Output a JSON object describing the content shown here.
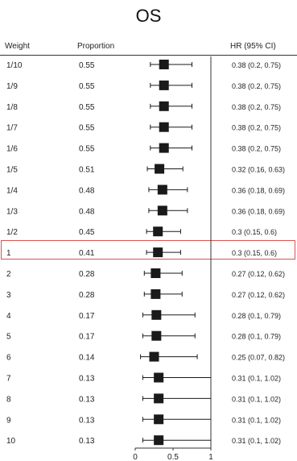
{
  "chart_data": {
    "type": "forest",
    "title": "OS",
    "columns": {
      "weight": "Weight",
      "proportion": "Proportion",
      "hr": "HR (95% CI)"
    },
    "rows": [
      {
        "weight": "1/10",
        "proportion": "0.55",
        "hr": 0.38,
        "lo": 0.2,
        "hi": 0.75,
        "label": "0.38 (0.2, 0.75)"
      },
      {
        "weight": "1/9",
        "proportion": "0.55",
        "hr": 0.38,
        "lo": 0.2,
        "hi": 0.75,
        "label": "0.38 (0.2, 0.75)"
      },
      {
        "weight": "1/8",
        "proportion": "0.55",
        "hr": 0.38,
        "lo": 0.2,
        "hi": 0.75,
        "label": "0.38 (0.2, 0.75)"
      },
      {
        "weight": "1/7",
        "proportion": "0.55",
        "hr": 0.38,
        "lo": 0.2,
        "hi": 0.75,
        "label": "0.38 (0.2, 0.75)"
      },
      {
        "weight": "1/6",
        "proportion": "0.55",
        "hr": 0.38,
        "lo": 0.2,
        "hi": 0.75,
        "label": "0.38 (0.2, 0.75)"
      },
      {
        "weight": "1/5",
        "proportion": "0.51",
        "hr": 0.32,
        "lo": 0.16,
        "hi": 0.63,
        "label": "0.32 (0.16, 0.63)"
      },
      {
        "weight": "1/4",
        "proportion": "0.48",
        "hr": 0.36,
        "lo": 0.18,
        "hi": 0.69,
        "label": "0.36 (0.18, 0.69)"
      },
      {
        "weight": "1/3",
        "proportion": "0.48",
        "hr": 0.36,
        "lo": 0.18,
        "hi": 0.69,
        "label": "0.36 (0.18, 0.69)"
      },
      {
        "weight": "1/2",
        "proportion": "0.45",
        "hr": 0.3,
        "lo": 0.15,
        "hi": 0.6,
        "label": "0.3 (0.15, 0.6)"
      },
      {
        "weight": "1",
        "proportion": "0.41",
        "hr": 0.3,
        "lo": 0.15,
        "hi": 0.6,
        "label": "0.3 (0.15, 0.6)",
        "highlight": true
      },
      {
        "weight": "2",
        "proportion": "0.28",
        "hr": 0.27,
        "lo": 0.12,
        "hi": 0.62,
        "label": "0.27 (0.12, 0.62)"
      },
      {
        "weight": "3",
        "proportion": "0.28",
        "hr": 0.27,
        "lo": 0.12,
        "hi": 0.62,
        "label": "0.27 (0.12, 0.62)"
      },
      {
        "weight": "4",
        "proportion": "0.17",
        "hr": 0.28,
        "lo": 0.1,
        "hi": 0.79,
        "label": "0.28 (0.1, 0.79)"
      },
      {
        "weight": "5",
        "proportion": "0.17",
        "hr": 0.28,
        "lo": 0.1,
        "hi": 0.79,
        "label": "0.28 (0.1, 0.79)"
      },
      {
        "weight": "6",
        "proportion": "0.14",
        "hr": 0.25,
        "lo": 0.07,
        "hi": 0.82,
        "label": "0.25 (0.07, 0.82)"
      },
      {
        "weight": "7",
        "proportion": "0.13",
        "hr": 0.31,
        "lo": 0.1,
        "hi": 1.02,
        "label": "0.31 (0.1, 1.02)"
      },
      {
        "weight": "8",
        "proportion": "0.13",
        "hr": 0.31,
        "lo": 0.1,
        "hi": 1.02,
        "label": "0.31 (0.1, 1.02)"
      },
      {
        "weight": "9",
        "proportion": "0.13",
        "hr": 0.31,
        "lo": 0.1,
        "hi": 1.02,
        "label": "0.31 (0.1, 1.02)"
      },
      {
        "weight": "10",
        "proportion": "0.13",
        "hr": 0.31,
        "lo": 0.1,
        "hi": 1.02,
        "label": "0.31 (0.1, 1.02)"
      }
    ],
    "x_ticks": [
      "0",
      "0.5",
      "1"
    ],
    "xlim": [
      0,
      1
    ],
    "reference_line": 1,
    "colors": {
      "marker": "#1a1a1a",
      "highlight_border": "#d9534f"
    }
  }
}
